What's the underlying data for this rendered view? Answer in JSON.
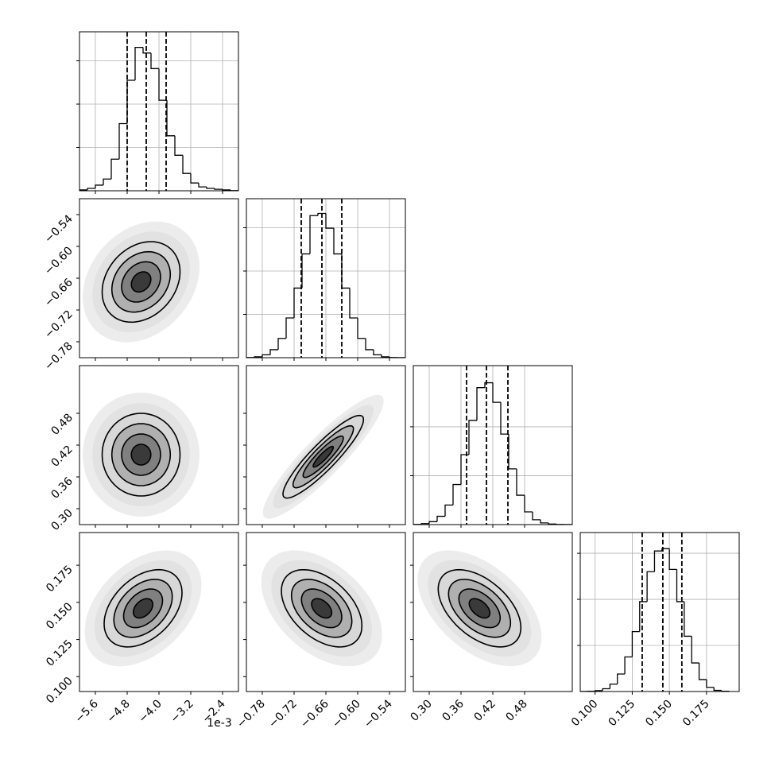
{
  "chart_data": {
    "type": "corner",
    "offset_text": "1e-3",
    "parameters": [
      {
        "xlim": [
          -6.0,
          -2.0
        ],
        "ticks": [
          {
            "value": -5.6,
            "label": "−5.6"
          },
          {
            "value": -4.8,
            "label": "−4.8"
          },
          {
            "value": -4.0,
            "label": "−4.0"
          },
          {
            "value": -3.2,
            "label": "−3.2"
          },
          {
            "value": -2.4,
            "label": "−2.4"
          }
        ]
      },
      {
        "xlim": [
          -0.81,
          -0.51
        ],
        "ticks": [
          {
            "value": -0.78,
            "label": "−0.78"
          },
          {
            "value": -0.72,
            "label": "−0.72"
          },
          {
            "value": -0.66,
            "label": "−0.66"
          },
          {
            "value": -0.6,
            "label": "−0.60"
          },
          {
            "value": -0.54,
            "label": "−0.54"
          }
        ]
      },
      {
        "xlim": [
          0.27,
          0.57
        ],
        "ticks": [
          {
            "value": 0.3,
            "label": "0.30"
          },
          0.36,
          0.42,
          0.48
        ]
      },
      {
        "xlim": [
          0.09,
          0.197
        ],
        "ticks": [
          {
            "value": 0.1,
            "label": "0.100"
          },
          0.125,
          {
            "value": 0.15,
            "label": "0.150"
          },
          0.175
        ]
      }
    ],
    "histograms": [
      {
        "bins": [
          -6.0,
          -5.8,
          -5.6,
          -5.4,
          -5.2,
          -5.0,
          -4.8,
          -4.6,
          -4.4,
          -4.2,
          -4.0,
          -3.8,
          -3.6,
          -3.4,
          -3.2,
          -3.0,
          -2.8,
          -2.6,
          -2.4,
          -2.2,
          -2.0
        ],
        "counts": [
          20,
          55,
          130,
          270,
          730,
          1550,
          2550,
          3310,
          3180,
          2820,
          2090,
          1270,
          820,
          400,
          180,
          90,
          55,
          35,
          20,
          5
        ],
        "ylim": [
          0,
          3670
        ],
        "yticks": [
          1000,
          2000,
          3000
        ],
        "quantiles": [
          -4.8,
          -4.32,
          -3.82
        ]
      },
      {
        "bins": [
          -0.81,
          -0.795,
          -0.78,
          -0.765,
          -0.75,
          -0.735,
          -0.72,
          -0.705,
          -0.69,
          -0.675,
          -0.66,
          -0.645,
          -0.63,
          -0.615,
          -0.6,
          -0.585,
          -0.57,
          -0.555,
          -0.54,
          -0.525,
          -0.51
        ],
        "counts": [
          5,
          20,
          66,
          185,
          445,
          917,
          1607,
          2396,
          3280,
          3330,
          2990,
          2396,
          1607,
          917,
          445,
          185,
          66,
          20,
          5,
          1
        ],
        "ylim": [
          0,
          3670
        ],
        "yticks": [
          1000,
          2000,
          3000
        ],
        "quantiles": [
          -0.7065,
          -0.6675,
          -0.63
        ]
      },
      {
        "bins": [
          0.27,
          0.285,
          0.3,
          0.315,
          0.33,
          0.345,
          0.36,
          0.375,
          0.39,
          0.405,
          0.42,
          0.435,
          0.45,
          0.465,
          0.48,
          0.495,
          0.51,
          0.525,
          0.54,
          0.555,
          0.57
        ],
        "counts": [
          4,
          20,
          60,
          170,
          400,
          820,
          1430,
          2130,
          2800,
          2900,
          2500,
          1850,
          1140,
          600,
          260,
          100,
          35,
          12,
          4,
          1
        ],
        "ylim": [
          0,
          3250
        ],
        "yticks": [
          1000,
          2000
        ],
        "quantiles": [
          0.3705,
          0.408,
          0.4485
        ]
      },
      {
        "bins": [
          0.09,
          0.095,
          0.1,
          0.105,
          0.11,
          0.115,
          0.12,
          0.125,
          0.13,
          0.135,
          0.14,
          0.145,
          0.15,
          0.155,
          0.16,
          0.165,
          0.17,
          0.175,
          0.18,
          0.185,
          0.19
        ],
        "counts": [
          2,
          6,
          20,
          60,
          160,
          380,
          750,
          1300,
          1950,
          2600,
          3050,
          3100,
          2650,
          1950,
          1200,
          620,
          260,
          90,
          25,
          6
        ],
        "ylim": [
          0,
          3450
        ],
        "yticks": [
          1000,
          2000,
          3000
        ],
        "quantiles": [
          0.1317,
          0.1456,
          0.1584
        ]
      }
    ],
    "pairs": [
      {
        "center": [
          -4.45,
          -0.667
        ],
        "sigma": [
          0.49,
          0.038
        ],
        "rho": 0.25,
        "levels": [
          0.5,
          1,
          1.5,
          2
        ]
      },
      {
        "center": [
          -4.45,
          0.402
        ],
        "sigma": [
          0.49,
          0.039
        ],
        "rho": 0.0,
        "levels": [
          0.5,
          1,
          1.5,
          2
        ]
      },
      {
        "center": [
          -0.665,
          0.398
        ],
        "sigma": [
          0.038,
          0.039
        ],
        "rho": 0.9,
        "levels": [
          0.5,
          1,
          1.5,
          2
        ]
      },
      {
        "center": [
          -4.4,
          0.146
        ],
        "sigma": [
          0.49,
          0.013
        ],
        "rho": 0.4,
        "levels": [
          0.5,
          1,
          1.5,
          2
        ]
      },
      {
        "center": [
          -0.668,
          0.146
        ],
        "sigma": [
          0.038,
          0.013
        ],
        "rho": -0.45,
        "levels": [
          0.5,
          1,
          1.5,
          2
        ]
      },
      {
        "center": [
          0.395,
          0.146
        ],
        "sigma": [
          0.039,
          0.013
        ],
        "rho": -0.5,
        "levels": [
          0.5,
          1,
          1.5,
          2
        ]
      }
    ]
  }
}
